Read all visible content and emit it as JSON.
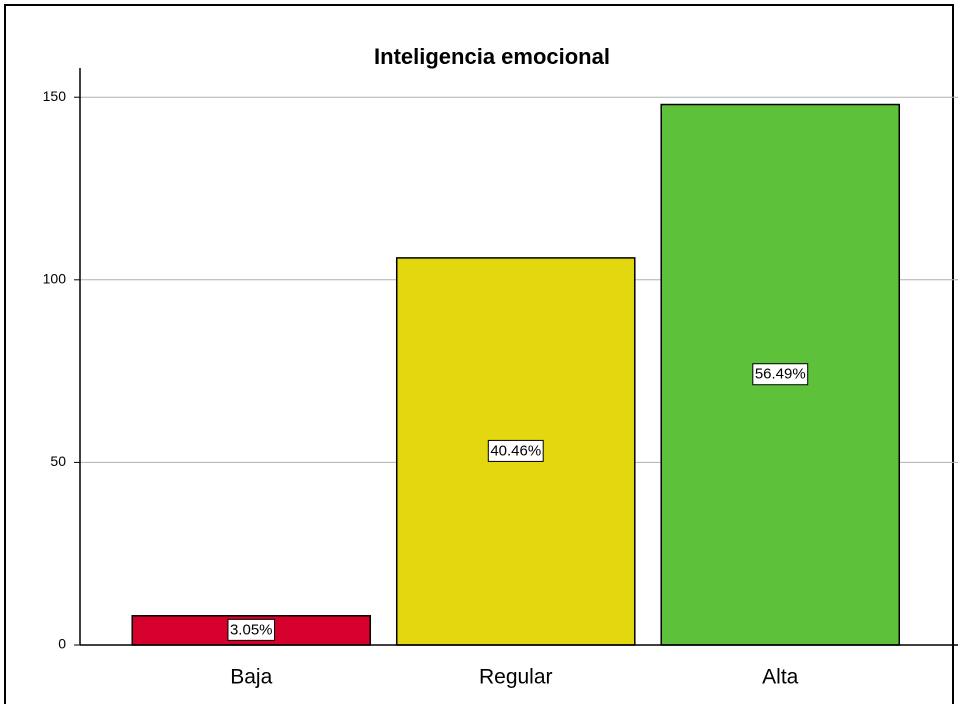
{
  "chart_data": {
    "type": "bar",
    "title": "Inteligencia emocional",
    "categories": [
      "Baja",
      "Regular",
      "Alta"
    ],
    "values": [
      8,
      106,
      148
    ],
    "colors": [
      "#d5002c",
      "#e3d70f",
      "#5ec13a"
    ],
    "percent_values": [
      3.05,
      40.46,
      56.49
    ],
    "percent_labels": [
      "3.05%",
      "40.46%",
      "56.49%"
    ],
    "ylim": [
      0,
      158
    ],
    "yticks": [
      0,
      50,
      100,
      150
    ],
    "grid": true
  }
}
